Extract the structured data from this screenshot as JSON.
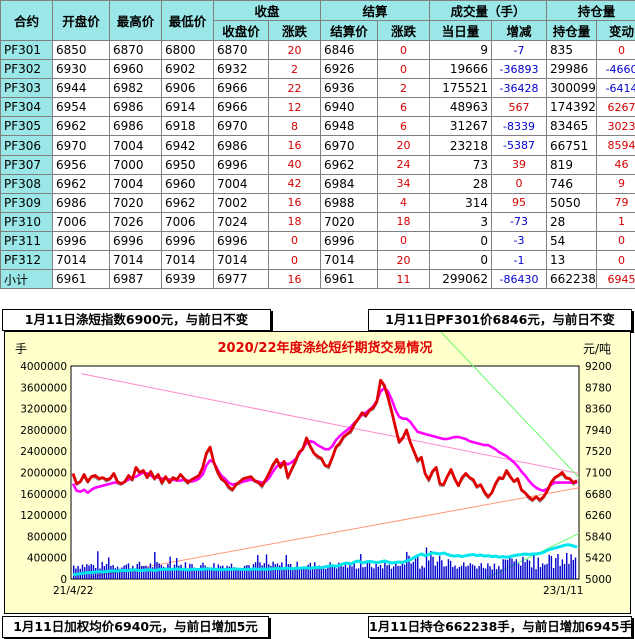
{
  "table": {
    "headers": {
      "contract": "合约",
      "open": "开盘价",
      "high": "最高价",
      "low": "最低价",
      "close_group": "收盘",
      "close_price": "收盘价",
      "close_change": "涨跌",
      "settle_group": "结算",
      "settle_price": "结算价",
      "settle_change": "涨跌",
      "volume_group": "成交量（手）",
      "volume_today": "当日量",
      "volume_change": "增减",
      "oi_group": "持仓量",
      "oi": "持仓量",
      "oi_change": "变动"
    },
    "rows": [
      {
        "name": "PF301",
        "open": "6850",
        "high": "6870",
        "low": "6800",
        "close": "6870",
        "cchg": "20",
        "settle": "6846",
        "schg": "0",
        "vol": "9",
        "vchg": "-7",
        "oi": "835",
        "oichg": "0"
      },
      {
        "name": "PF302",
        "open": "6930",
        "high": "6960",
        "low": "6902",
        "close": "6932",
        "cchg": "2",
        "settle": "6926",
        "schg": "0",
        "vol": "19666",
        "vchg": "-36893",
        "oi": "29986",
        "oichg": "-4660"
      },
      {
        "name": "PF303",
        "open": "6944",
        "high": "6982",
        "low": "6906",
        "close": "6966",
        "cchg": "22",
        "settle": "6936",
        "schg": "2",
        "vol": "175521",
        "vchg": "-36428",
        "oi": "300099",
        "oichg": "-6414"
      },
      {
        "name": "PF304",
        "open": "6954",
        "high": "6986",
        "low": "6914",
        "close": "6966",
        "cchg": "12",
        "settle": "6940",
        "schg": "6",
        "vol": "48963",
        "vchg": "567",
        "oi": "174392",
        "oichg": "6267"
      },
      {
        "name": "PF305",
        "open": "6962",
        "high": "6986",
        "low": "6918",
        "close": "6970",
        "cchg": "8",
        "settle": "6948",
        "schg": "6",
        "vol": "31267",
        "vchg": "-8339",
        "oi": "83465",
        "oichg": "3023"
      },
      {
        "name": "PF306",
        "open": "6970",
        "high": "7004",
        "low": "6942",
        "close": "6986",
        "cchg": "16",
        "settle": "6970",
        "schg": "20",
        "vol": "23218",
        "vchg": "-5387",
        "oi": "66751",
        "oichg": "8594"
      },
      {
        "name": "PF307",
        "open": "6956",
        "high": "7000",
        "low": "6950",
        "close": "6996",
        "cchg": "40",
        "settle": "6962",
        "schg": "24",
        "vol": "73",
        "vchg": "39",
        "oi": "819",
        "oichg": "46"
      },
      {
        "name": "PF308",
        "open": "6962",
        "high": "7004",
        "low": "6960",
        "close": "7004",
        "cchg": "42",
        "settle": "6984",
        "schg": "34",
        "vol": "28",
        "vchg": "0",
        "oi": "746",
        "oichg": "9"
      },
      {
        "name": "PF309",
        "open": "6986",
        "high": "7020",
        "low": "6962",
        "close": "7002",
        "cchg": "16",
        "settle": "6988",
        "schg": "4",
        "vol": "314",
        "vchg": "95",
        "oi": "5050",
        "oichg": "79"
      },
      {
        "name": "PF310",
        "open": "7006",
        "high": "7026",
        "low": "7006",
        "close": "7024",
        "cchg": "18",
        "settle": "7020",
        "schg": "18",
        "vol": "3",
        "vchg": "-73",
        "oi": "28",
        "oichg": "1"
      },
      {
        "name": "PF311",
        "open": "6996",
        "high": "6996",
        "low": "6996",
        "close": "6996",
        "cchg": "0",
        "settle": "6996",
        "schg": "0",
        "vol": "0",
        "vchg": "-3",
        "oi": "54",
        "oichg": "0"
      },
      {
        "name": "PF312",
        "open": "7014",
        "high": "7014",
        "low": "7014",
        "close": "7014",
        "cchg": "0",
        "settle": "7014",
        "schg": "20",
        "vol": "0",
        "vchg": "-1",
        "oi": "13",
        "oichg": "0"
      },
      {
        "name": "小计",
        "open": "6961",
        "high": "6987",
        "low": "6939",
        "close": "6977",
        "cchg": "16",
        "settle": "6961",
        "schg": "11",
        "vol": "299062",
        "vchg": "-86430",
        "oi": "662238",
        "oichg": "6945"
      }
    ]
  },
  "info": {
    "index": "1月11日涤短指数6900元，与前日不变",
    "pf301": "1月11日PF301价6846元，与前日不变",
    "wavg": "1月11日加权均价6940元，与前日增加5元",
    "oi": "1月11日持仓662238手，与前日增加6945手"
  },
  "colors": {
    "header_bg": "#9be7e7",
    "chart_bg": "#ffffcc",
    "price_red": "#e00000",
    "index_magenta": "#ff00ff",
    "settle_gray": "#909090",
    "volume_blue": "#0000cc",
    "oi_cyan": "#00e5ee",
    "trend_green": "#66ff66",
    "trend_pink": "#ff88cc",
    "title_red": "#e00000"
  },
  "chart_data": {
    "type": "line",
    "title": "2020/22年度涤纶短纤期货交易情况",
    "left_unit": "手",
    "right_unit": "元/吨",
    "x_start_label": "21/4/22",
    "x_end_label": "23/1/11",
    "left_axis": {
      "min": 0,
      "max": 4000000,
      "ticks": [
        "4000000",
        "3600000",
        "3200000",
        "2800000",
        "2400000",
        "2000000",
        "1600000",
        "1200000",
        "800000",
        "400000",
        "0"
      ]
    },
    "right_axis": {
      "min": 5000,
      "max": 9200,
      "ticks": [
        "9200",
        "8780",
        "8360",
        "7940",
        "7520",
        "7100",
        "6680",
        "6260",
        "5840",
        "5420",
        "5000"
      ]
    },
    "price_series": {
      "name": "price",
      "values": [
        7080,
        6880,
        6920,
        7060,
        6920,
        7020,
        7040,
        6980,
        7000,
        6960,
        6980,
        7080,
        6920,
        6880,
        6920,
        7040,
        6960,
        7200,
        7100,
        7140,
        7000,
        7120,
        6980,
        7060,
        6900,
        7020,
        6900,
        7000,
        6960,
        7060,
        6980,
        6900,
        6960,
        7000,
        7040,
        7200,
        7480,
        7600,
        7300,
        7120,
        6980,
        6920,
        6820,
        6760,
        6860,
        6920,
        6980,
        7000,
        7020,
        6940,
        6900,
        6840,
        6960,
        7100,
        7260,
        7360,
        7200,
        7320,
        7000,
        7160,
        7320,
        7500,
        7560,
        7780,
        7620,
        7480,
        7420,
        7380,
        7240,
        7220,
        7400,
        7600,
        7680,
        7800,
        7860,
        7920,
        8060,
        8160,
        8280,
        8220,
        8320,
        8380,
        8500,
        8920,
        8820,
        8580,
        8300,
        8000,
        7700,
        7780,
        7940,
        7700,
        7520,
        7340,
        7400,
        7080,
        6960,
        7120,
        7200,
        6880,
        6860,
        7020,
        7160,
        6980,
        6840,
        7000,
        7080,
        7000,
        6960,
        6820,
        6860,
        6720,
        6620,
        6700,
        6880,
        7000,
        6980,
        7140,
        7020,
        6920,
        6980,
        6760,
        6700,
        6620,
        6560,
        6620,
        6560,
        6620,
        6740,
        6900,
        7000,
        7040,
        7100,
        7000,
        6980,
        6900,
        6940
      ]
    },
    "index_series": {
      "name": "index",
      "values": [
        6880,
        6740,
        6720,
        6760,
        6700,
        6760,
        6800,
        6820,
        6840,
        6860,
        6880,
        6900,
        6900,
        6880,
        6920,
        6960,
        7000,
        7020,
        7060,
        7100,
        7080,
        7040,
        7000,
        7000,
        6980,
        6980,
        6960,
        6960,
        6940,
        6940,
        6960,
        6940,
        6920,
        6940,
        6980,
        7060,
        7240,
        7340,
        7300,
        7160,
        7040,
        6980,
        6900,
        6860,
        6880,
        6900,
        6920,
        6940,
        6960,
        6940,
        6920,
        6900,
        6920,
        7000,
        7120,
        7220,
        7280,
        7300,
        7260,
        7300,
        7360,
        7460,
        7580,
        7680,
        7720,
        7700,
        7640,
        7600,
        7560,
        7560,
        7620,
        7740,
        7820,
        7880,
        7940,
        8000,
        8080,
        8160,
        8240,
        8280,
        8340,
        8400,
        8520,
        8700,
        8760,
        8700,
        8540,
        8340,
        8200,
        8160,
        8160,
        8100,
        8000,
        7900,
        7880,
        7860,
        7840,
        7820,
        7800,
        7780,
        7760,
        7760,
        7780,
        7800,
        7800,
        7780,
        7760,
        7720,
        7700,
        7680,
        7660,
        7640,
        7640,
        7600,
        7560,
        7500,
        7460,
        7420,
        7360,
        7300,
        7220,
        7120,
        7040,
        6940,
        6860,
        6800,
        6760,
        6740,
        6780,
        6860,
        6900,
        6900,
        6900,
        6900,
        6900,
        6900,
        6900
      ]
    },
    "oi_series": {
      "name": "open interest",
      "values": [
        80000,
        90000,
        100000,
        110000,
        120000,
        120000,
        130000,
        140000,
        130000,
        140000,
        150000,
        150000,
        150000,
        160000,
        160000,
        160000,
        170000,
        170000,
        160000,
        160000,
        170000,
        170000,
        160000,
        170000,
        180000,
        180000,
        180000,
        180000,
        190000,
        180000,
        180000,
        170000,
        180000,
        180000,
        180000,
        180000,
        190000,
        190000,
        180000,
        180000,
        170000,
        180000,
        180000,
        180000,
        190000,
        180000,
        180000,
        180000,
        180000,
        190000,
        180000,
        190000,
        180000,
        190000,
        190000,
        200000,
        190000,
        200000,
        200000,
        190000,
        200000,
        200000,
        210000,
        210000,
        200000,
        210000,
        220000,
        210000,
        230000,
        240000,
        250000,
        240000,
        260000,
        290000,
        300000,
        280000,
        320000,
        340000,
        300000,
        320000,
        330000,
        320000,
        310000,
        320000,
        340000,
        320000,
        300000,
        310000,
        320000,
        310000,
        340000,
        360000,
        400000,
        440000,
        470000,
        440000,
        460000,
        490000,
        480000,
        470000,
        490000,
        460000,
        440000,
        430000,
        440000,
        420000,
        440000,
        450000,
        460000,
        440000,
        450000,
        430000,
        440000,
        420000,
        430000,
        410000,
        420000,
        410000,
        420000,
        440000,
        450000,
        460000,
        470000,
        460000,
        470000,
        470000,
        480000,
        500000,
        540000,
        560000,
        580000,
        600000,
        620000,
        640000,
        640000,
        620000,
        600000
      ]
    },
    "volume_bars_present": true,
    "trend_lines": [
      "green descending line top-right",
      "pink descending line from upper-left",
      "orange ascending line from lower-left"
    ]
  }
}
